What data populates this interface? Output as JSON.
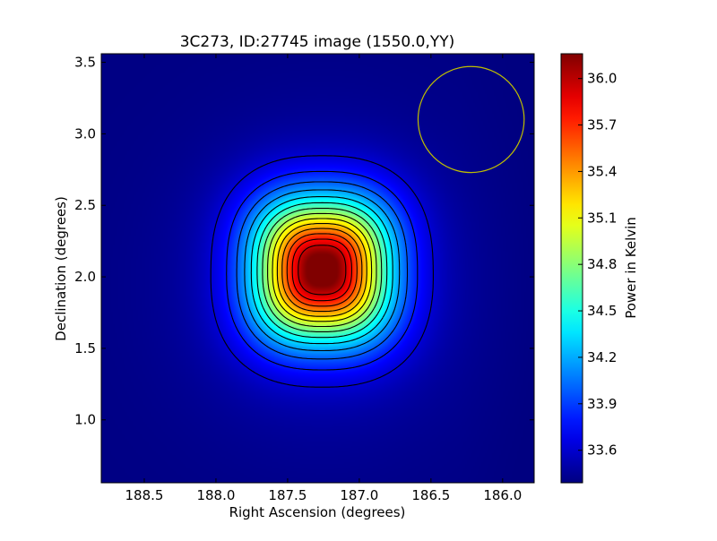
{
  "chart_data": {
    "type": "heatmap",
    "title": "3C273, ID:27745 image (1550.0,YY)",
    "xlabel": "Right Ascension (degrees)",
    "ylabel": "Declination (degrees)",
    "xlim": [
      188.8,
      185.78
    ],
    "ylim": [
      0.56,
      3.56
    ],
    "x_reversed": true,
    "x_ticks": [
      {
        "value": 188.5,
        "label": "188.5"
      },
      {
        "value": 188.0,
        "label": "188.0"
      },
      {
        "value": 187.5,
        "label": "187.5"
      },
      {
        "value": 187.0,
        "label": "187.0"
      },
      {
        "value": 186.5,
        "label": "186.5"
      },
      {
        "value": 186.0,
        "label": "186.0"
      }
    ],
    "y_ticks": [
      {
        "value": 1.0,
        "label": "1.0"
      },
      {
        "value": 1.5,
        "label": "1.5"
      },
      {
        "value": 2.0,
        "label": "2.0"
      },
      {
        "value": 2.5,
        "label": "2.5"
      },
      {
        "value": 3.0,
        "label": "3.0"
      },
      {
        "value": 3.5,
        "label": "3.5"
      }
    ],
    "colorbar": {
      "label": "Power in Kelvin",
      "range": [
        33.39,
        36.16
      ],
      "ticks": [
        {
          "value": 33.6,
          "label": "33.6"
        },
        {
          "value": 33.9,
          "label": "33.9"
        },
        {
          "value": 34.2,
          "label": "34.2"
        },
        {
          "value": 34.5,
          "label": "34.5"
        },
        {
          "value": 34.8,
          "label": "34.8"
        },
        {
          "value": 35.1,
          "label": "35.1"
        },
        {
          "value": 35.4,
          "label": "35.4"
        },
        {
          "value": 35.7,
          "label": "35.7"
        },
        {
          "value": 36.0,
          "label": "36.0"
        }
      ],
      "colormap": "jet"
    },
    "source": {
      "ra": 187.26,
      "dec": 2.05,
      "peak_kelvin": 36.15
    },
    "background_kelvin": 33.4,
    "circle_marker": {
      "ra": 186.22,
      "dec": 3.1,
      "radius_deg": 0.37,
      "color": "#bfbf00"
    },
    "contour_color": "#000000",
    "grid": false,
    "legend": "none"
  }
}
